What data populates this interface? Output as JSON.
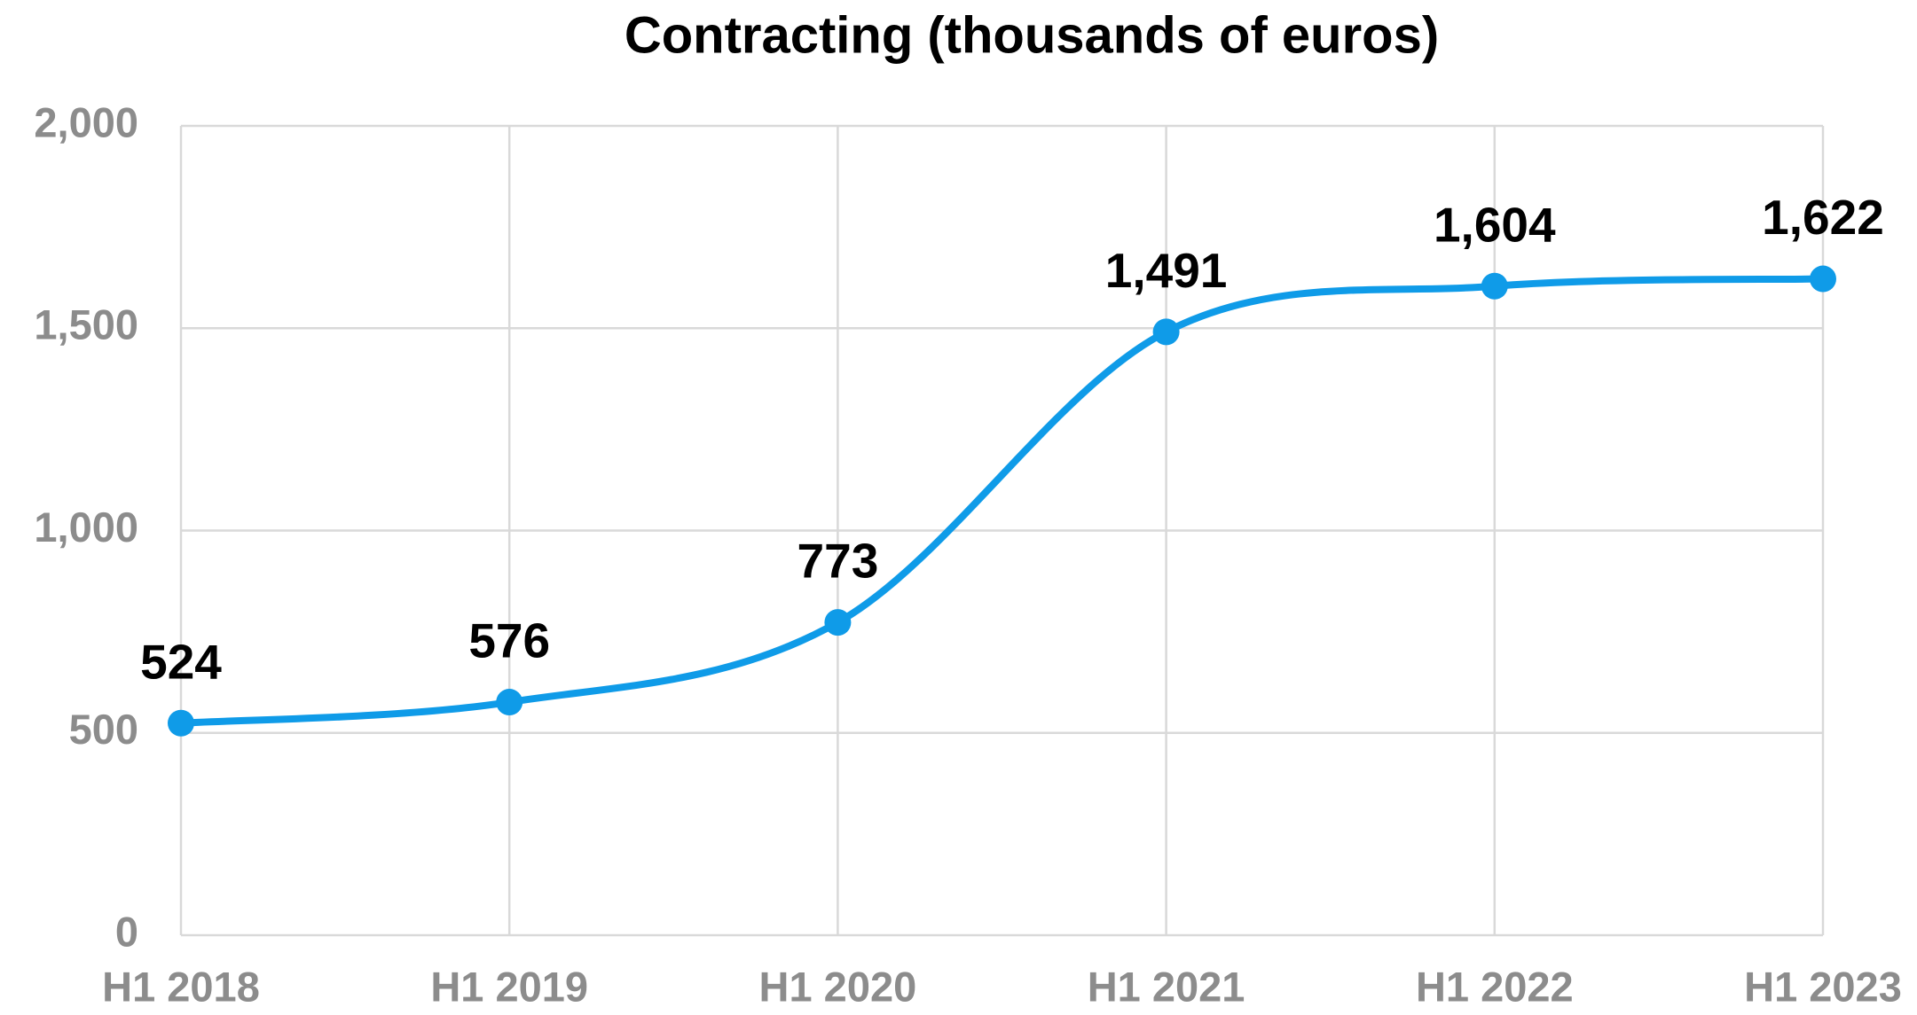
{
  "chart_data": {
    "type": "line",
    "title": "Contracting (thousands of euros)",
    "categories": [
      "H1 2018",
      "H1 2019",
      "H1 2020",
      "H1 2021",
      "H1 2022",
      "H1 2023"
    ],
    "series": [
      {
        "name": "Contracting",
        "color": "#0f9be8",
        "values": [
          524,
          576,
          773,
          1491,
          1604,
          1622
        ],
        "value_labels": [
          "524",
          "576",
          "773",
          "1,491",
          "1,604",
          "1,622"
        ]
      }
    ],
    "ylim": [
      0,
      2000
    ],
    "yticks": [
      0,
      500,
      {
        "value": 1000,
        "label": "1,000"
      },
      {
        "value": 1500,
        "label": "1,500"
      },
      {
        "value": 2000,
        "label": "2,000"
      }
    ],
    "grid": true,
    "smooth": true
  }
}
